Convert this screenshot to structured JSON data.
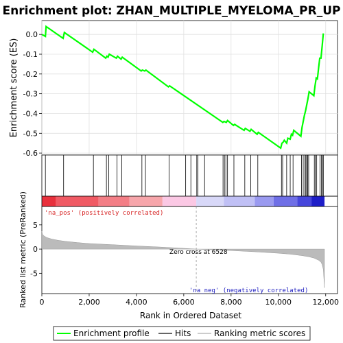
{
  "title": "Enrichment plot: ZHAN_MULTIPLE_MYELOMA_PR_UP",
  "legend": {
    "items": [
      {
        "label": "Enrichment profile",
        "color": "#00ff00"
      },
      {
        "label": "Hits",
        "color": "#666666"
      },
      {
        "label": "Ranking metric scores",
        "color": "#cccccc"
      }
    ]
  },
  "chart_data": [
    {
      "type": "line",
      "name": "enrichment-profile",
      "title": "Enrichment plot: ZHAN_MULTIPLE_MYELOMA_PR_UP",
      "ylabel": "Enrichment score (ES)",
      "xlim": [
        0,
        12500
      ],
      "ylim": [
        -0.61,
        0.07
      ],
      "yticks": [
        "0.0",
        "-0.1",
        "-0.2",
        "-0.3",
        "-0.4",
        "-0.5",
        "-0.6"
      ],
      "ytick_values": [
        0.0,
        -0.1,
        -0.2,
        -0.3,
        -0.4,
        -0.5,
        -0.6
      ],
      "grid": true,
      "color": "#00ff00",
      "x": [
        0,
        150,
        180,
        900,
        950,
        2150,
        2200,
        2700,
        2750,
        2800,
        2850,
        3150,
        3200,
        3350,
        3400,
        4200,
        4250,
        4350,
        4400,
        5350,
        5400,
        7650,
        7700,
        7800,
        7850,
        8100,
        8150,
        8550,
        8600,
        8800,
        8850,
        9100,
        9150,
        10100,
        10150,
        10200,
        10250,
        10350,
        10400,
        10500,
        10550,
        10600,
        10650,
        10950,
        11000,
        11050,
        11100,
        11150,
        11200,
        11250,
        11300,
        11500,
        11550,
        11600,
        11650,
        11700,
        11750,
        11800,
        11850,
        11900
      ],
      "y": [
        0.0,
        -0.01,
        0.04,
        -0.02,
        0.01,
        -0.09,
        -0.075,
        -0.12,
        -0.11,
        -0.115,
        -0.1,
        -0.12,
        -0.11,
        -0.125,
        -0.115,
        -0.185,
        -0.18,
        -0.185,
        -0.18,
        -0.265,
        -0.26,
        -0.445,
        -0.44,
        -0.445,
        -0.435,
        -0.46,
        -0.455,
        -0.485,
        -0.475,
        -0.49,
        -0.48,
        -0.505,
        -0.495,
        -0.575,
        -0.55,
        -0.545,
        -0.535,
        -0.55,
        -0.525,
        -0.53,
        -0.505,
        -0.51,
        -0.485,
        -0.515,
        -0.47,
        -0.44,
        -0.41,
        -0.385,
        -0.355,
        -0.325,
        -0.29,
        -0.31,
        -0.26,
        -0.22,
        -0.225,
        -0.17,
        -0.12,
        -0.12,
        -0.06,
        0.005
      ]
    },
    {
      "type": "scatter",
      "name": "hits",
      "xlim": [
        0,
        12500
      ],
      "hit_positions": [
        150,
        920,
        2180,
        2730,
        2830,
        3180,
        3380,
        4230,
        4380,
        5380,
        6080,
        6300,
        6550,
        6600,
        6880,
        7660,
        7720,
        7780,
        7850,
        8120,
        8580,
        8830,
        9130,
        10130,
        10180,
        10350,
        10500,
        10620,
        10980,
        11050,
        11120,
        11160,
        11200,
        11240,
        11280,
        11520,
        11560,
        11620,
        11760,
        11820,
        11870,
        11900
      ]
    },
    {
      "type": "area",
      "name": "ranking-metric",
      "ylabel": "Ranked list metric (PreRanked)",
      "xlabel": "Rank in Ordered Dataset",
      "xlim": [
        0,
        12500
      ],
      "ylim": [
        -9.2,
        8.8
      ],
      "yticks": [
        "5",
        "0",
        "-5"
      ],
      "ytick_values": [
        5,
        0,
        -5
      ],
      "xticks": [
        "0",
        "2,000",
        "4,000",
        "6,000",
        "8,000",
        "10,000",
        "12,000"
      ],
      "xtick_values": [
        0,
        2000,
        4000,
        6000,
        8000,
        10000,
        12000
      ],
      "x": [
        0,
        30,
        100,
        200,
        400,
        700,
        1000,
        1500,
        2000,
        3000,
        4000,
        5000,
        6000,
        6528,
        7000,
        8000,
        9000,
        10000,
        10500,
        11000,
        11300,
        11500,
        11700,
        11800,
        11850,
        11900,
        11950
      ],
      "y": [
        3.7,
        3.0,
        2.7,
        2.4,
        2.1,
        1.8,
        1.6,
        1.35,
        1.15,
        0.9,
        0.65,
        0.42,
        0.15,
        0.0,
        -0.1,
        -0.3,
        -0.55,
        -0.85,
        -1.05,
        -1.35,
        -1.6,
        -1.85,
        -2.3,
        -2.7,
        -3.2,
        -4.2,
        -8.0
      ],
      "fill": "#bbbbbb"
    }
  ],
  "annotations": {
    "pos_label": "'na_pos' (positively correlated)",
    "neg_label": "'na_neg' (negatively correlated)",
    "zero_cross": "Zero cross at 6528",
    "zero_cross_value": 6528
  },
  "heatbar": {
    "segments": [
      {
        "from": 0,
        "to": 600,
        "color": "#e8303c"
      },
      {
        "from": 600,
        "to": 2400,
        "color": "#f05a64"
      },
      {
        "from": 2400,
        "to": 3700,
        "color": "#f37e86"
      },
      {
        "from": 3700,
        "to": 5100,
        "color": "#f7a6ab"
      },
      {
        "from": 5100,
        "to": 6528,
        "color": "#fbc8e4"
      },
      {
        "from": 6528,
        "to": 7700,
        "color": "#d8d8f8"
      },
      {
        "from": 7700,
        "to": 9000,
        "color": "#c0c0f5"
      },
      {
        "from": 9000,
        "to": 9800,
        "color": "#9a9af0"
      },
      {
        "from": 9800,
        "to": 10800,
        "color": "#6f6fe6"
      },
      {
        "from": 10800,
        "to": 11400,
        "color": "#4646dc"
      },
      {
        "from": 11400,
        "to": 11950,
        "color": "#1e1ec8"
      }
    ]
  }
}
